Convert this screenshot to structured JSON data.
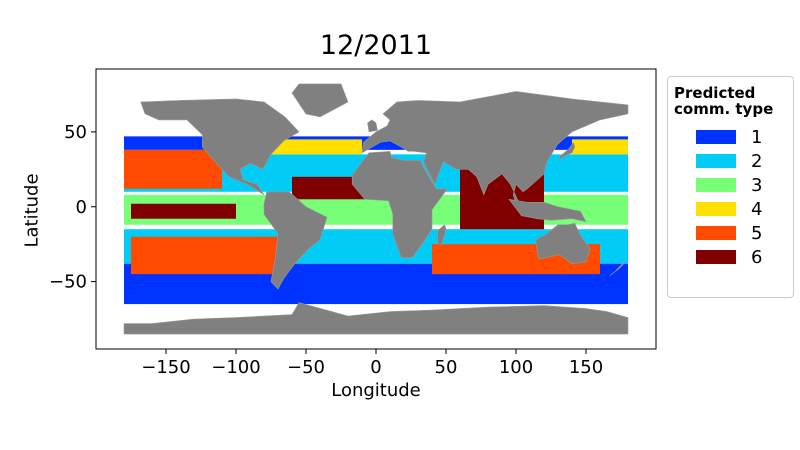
{
  "chart_data": {
    "type": "scatter",
    "title": "12/2011",
    "xlabel": "Longitude",
    "ylabel": "Latitude",
    "xlim": [
      -200,
      200
    ],
    "ylim": [
      -95,
      92
    ],
    "xticks": [
      -150,
      -100,
      -50,
      0,
      50,
      100,
      150
    ],
    "xtick_labels": [
      "−150",
      "−100",
      "−50",
      "0",
      "50",
      "100",
      "150"
    ],
    "yticks": [
      50,
      0,
      -50
    ],
    "ytick_labels": [
      "50",
      "0",
      "−50"
    ],
    "land_color": "#808080",
    "legend": {
      "title_line1": "Predicted",
      "title_line2": "comm. type",
      "placement": "right",
      "entries": [
        {
          "label": "1",
          "color": "#0033ff"
        },
        {
          "label": "2",
          "color": "#00ccf5"
        },
        {
          "label": "3",
          "color": "#77ff77"
        },
        {
          "label": "4",
          "color": "#ffe000"
        },
        {
          "label": "5",
          "color": "#ff4a00"
        },
        {
          "label": "6",
          "color": "#800000"
        }
      ]
    },
    "regions": [
      {
        "type": "1",
        "lon": [
          -180,
          180
        ],
        "lat": [
          -65,
          -38
        ]
      },
      {
        "type": "1",
        "lon": [
          -180,
          180
        ],
        "lat": [
          38,
          47
        ]
      },
      {
        "type": "2",
        "lon": [
          -180,
          180
        ],
        "lat": [
          -38,
          -15
        ]
      },
      {
        "type": "2",
        "lon": [
          -180,
          180
        ],
        "lat": [
          10,
          35
        ]
      },
      {
        "type": "3",
        "lon": [
          -180,
          180
        ],
        "lat": [
          -12,
          8
        ]
      },
      {
        "type": "4",
        "lon": [
          -80,
          -10
        ],
        "lat": [
          35,
          45
        ]
      },
      {
        "type": "4",
        "lon": [
          140,
          180
        ],
        "lat": [
          35,
          45
        ]
      },
      {
        "type": "5",
        "lon": [
          -175,
          -70
        ],
        "lat": [
          -45,
          -20
        ]
      },
      {
        "type": "5",
        "lon": [
          -180,
          -110
        ],
        "lat": [
          12,
          38
        ]
      },
      {
        "type": "5",
        "lon": [
          40,
          160
        ],
        "lat": [
          -45,
          -25
        ]
      },
      {
        "type": "6",
        "lon": [
          60,
          120
        ],
        "lat": [
          -15,
          25
        ]
      },
      {
        "type": "6",
        "lon": [
          -60,
          0
        ],
        "lat": [
          5,
          20
        ]
      },
      {
        "type": "6",
        "lon": [
          -175,
          -100
        ],
        "lat": [
          -8,
          2
        ]
      }
    ]
  }
}
